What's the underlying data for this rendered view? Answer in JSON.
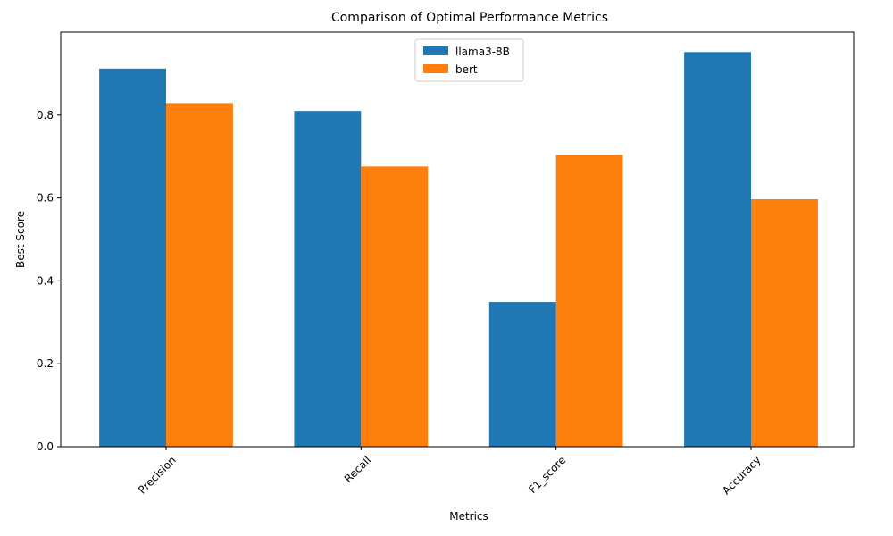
{
  "chart_data": {
    "type": "bar",
    "title": "Comparison of Optimal Performance Metrics",
    "xlabel": "Metrics",
    "ylabel": "Best Score",
    "categories": [
      "Precision",
      "Recall",
      "F1_score",
      "Accuracy"
    ],
    "series": [
      {
        "name": "llama3-8B",
        "color": "#1f77b4",
        "values": [
          0.912,
          0.81,
          0.349,
          0.952
        ]
      },
      {
        "name": "bert",
        "color": "#ff7f0e",
        "values": [
          0.829,
          0.676,
          0.704,
          0.597
        ]
      }
    ],
    "ylim": [
      0,
      1.0
    ],
    "yticks": [
      "0.0",
      "0.2",
      "0.4",
      "0.6",
      "0.8"
    ],
    "grid": false,
    "legend_position": "top-center",
    "xtick_rotation_deg": 45
  }
}
